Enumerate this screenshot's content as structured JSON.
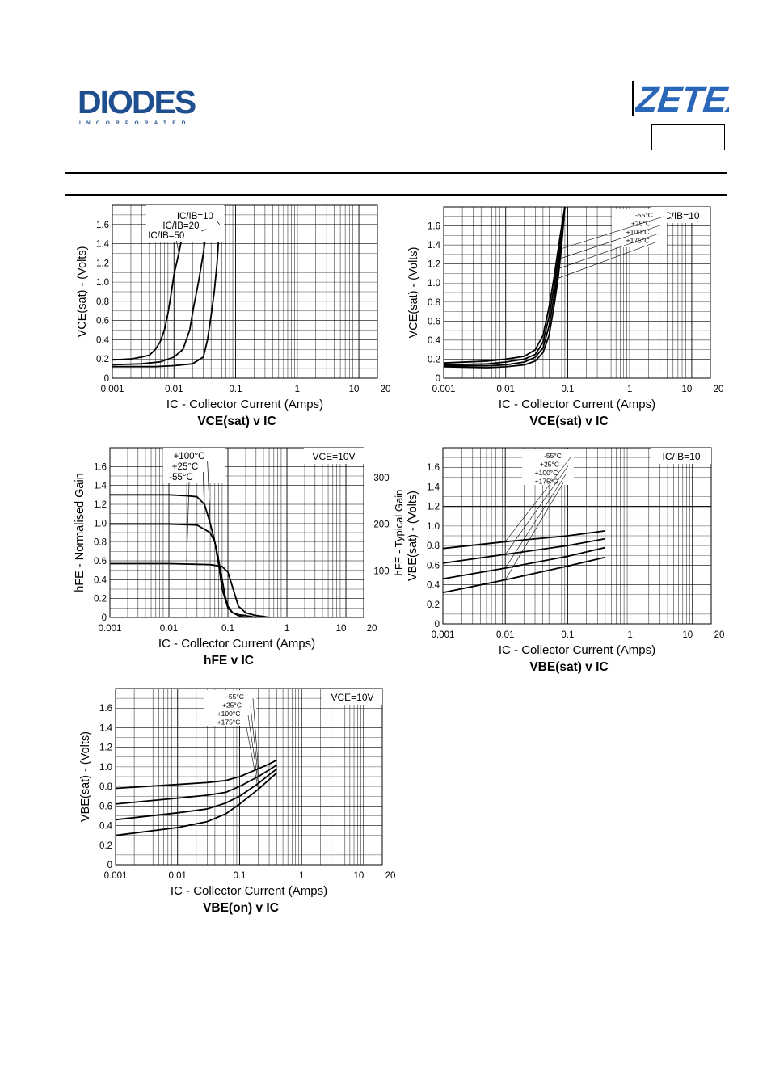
{
  "header": {
    "left_logo_text": "DIODES",
    "left_logo_subtext": "INCORPORATED",
    "right_logo_text": "ZETEX",
    "colors": {
      "diodes_logo": "#1f4f8f",
      "zetex_logo": "#2a67b8"
    }
  },
  "chart_data": [
    {
      "type": "line",
      "title": "VCE(sat) v IC",
      "xlabel": "IC - Collector Current (Amps)",
      "ylabel": "VCE(sat) - (Volts)",
      "x_scale": "log",
      "xlim": [
        0.001,
        20
      ],
      "ylim": [
        0,
        1.8
      ],
      "x_ticks": [
        "0.001",
        "0.01",
        "0.1",
        "1",
        "10",
        "20"
      ],
      "y_ticks": [
        "0",
        "0.2",
        "0.4",
        "0.6",
        "0.8",
        "1.0",
        "1.2",
        "1.4",
        "1.6"
      ],
      "legend_title": "",
      "series_labels": [
        "IC/IB=10",
        "IC/IB=20",
        "IC/IB=50"
      ],
      "series": [
        {
          "name": "IC/IB=50",
          "x": [
            0.001,
            0.002,
            0.003,
            0.004,
            0.005,
            0.006,
            0.007,
            0.008,
            0.009,
            0.01,
            0.012,
            0.015
          ],
          "y": [
            0.19,
            0.2,
            0.22,
            0.24,
            0.3,
            0.38,
            0.5,
            0.68,
            0.88,
            1.08,
            1.3,
            1.62
          ]
        },
        {
          "name": "IC/IB=20",
          "x": [
            0.001,
            0.003,
            0.006,
            0.01,
            0.014,
            0.018,
            0.021,
            0.025,
            0.03,
            0.035
          ],
          "y": [
            0.14,
            0.15,
            0.17,
            0.22,
            0.3,
            0.5,
            0.75,
            1.0,
            1.3,
            1.62
          ]
        },
        {
          "name": "IC/IB=10",
          "x": [
            0.001,
            0.005,
            0.01,
            0.02,
            0.03,
            0.035,
            0.04,
            0.045,
            0.05,
            0.055
          ],
          "y": [
            0.12,
            0.12,
            0.13,
            0.15,
            0.22,
            0.4,
            0.65,
            0.9,
            1.2,
            1.6
          ]
        }
      ]
    },
    {
      "type": "line",
      "title": "VCE(sat) v IC",
      "xlabel": "IC - Collector Current (Amps)",
      "ylabel": "VCE(sat) - (Volts)",
      "x_scale": "log",
      "xlim": [
        0.001,
        20
      ],
      "ylim": [
        0,
        1.8
      ],
      "x_ticks": [
        "0.001",
        "0.01",
        "0.1",
        "1",
        "10",
        "20"
      ],
      "y_ticks": [
        "0",
        "0.2",
        "0.4",
        "0.6",
        "0.8",
        "1.0",
        "1.2",
        "1.4",
        "1.6"
      ],
      "legend_title": "IC/IB=10",
      "series_labels": [
        "-55°C",
        "+25°C",
        "+100°C",
        "+175°C"
      ],
      "series": [
        {
          "name": "-55°C",
          "x": [
            0.001,
            0.005,
            0.01,
            0.02,
            0.03,
            0.04,
            0.05,
            0.06,
            0.07,
            0.08,
            0.09
          ],
          "y": [
            0.16,
            0.18,
            0.2,
            0.23,
            0.3,
            0.45,
            0.75,
            1.05,
            1.35,
            1.6,
            1.8
          ]
        },
        {
          "name": "+25°C",
          "x": [
            0.001,
            0.005,
            0.01,
            0.02,
            0.03,
            0.04,
            0.05,
            0.06,
            0.07,
            0.08,
            0.09
          ],
          "y": [
            0.14,
            0.15,
            0.17,
            0.2,
            0.25,
            0.38,
            0.65,
            0.95,
            1.25,
            1.55,
            1.8
          ]
        },
        {
          "name": "+100°C",
          "x": [
            0.001,
            0.005,
            0.01,
            0.02,
            0.03,
            0.04,
            0.05,
            0.06,
            0.07,
            0.08,
            0.09
          ],
          "y": [
            0.13,
            0.13,
            0.14,
            0.17,
            0.22,
            0.32,
            0.55,
            0.85,
            1.15,
            1.5,
            1.8
          ]
        },
        {
          "name": "+175°C",
          "x": [
            0.001,
            0.005,
            0.01,
            0.02,
            0.03,
            0.04,
            0.05,
            0.06,
            0.07,
            0.08,
            0.09
          ],
          "y": [
            0.12,
            0.11,
            0.12,
            0.14,
            0.18,
            0.27,
            0.45,
            0.75,
            1.05,
            1.4,
            1.8
          ]
        }
      ]
    },
    {
      "type": "line",
      "title": "hFE v IC",
      "xlabel": "IC - Collector Current (Amps)",
      "ylabel": "hFE - Normalised Gain",
      "y2label": "hFE - Typical Gain",
      "x_scale": "log",
      "xlim": [
        0.001,
        20
      ],
      "ylim": [
        0,
        1.8
      ],
      "y2_ticks": [
        "100",
        "200",
        "300"
      ],
      "x_ticks": [
        "0.001",
        "0.01",
        "0.1",
        "1",
        "10",
        "20"
      ],
      "y_ticks": [
        "0",
        "0.2",
        "0.4",
        "0.6",
        "0.8",
        "1.0",
        "1.2",
        "1.4",
        "1.6"
      ],
      "legend_title": "VCE=10V",
      "series_labels": [
        "+100°C",
        "+25°C",
        "-55°C"
      ],
      "series": [
        {
          "name": "+100°C",
          "x": [
            0.001,
            0.01,
            0.02,
            0.03,
            0.04,
            0.05,
            0.06,
            0.07,
            0.08,
            0.1,
            0.12,
            0.15,
            0.2
          ],
          "y": [
            1.3,
            1.3,
            1.29,
            1.28,
            1.2,
            1.0,
            0.8,
            0.55,
            0.3,
            0.1,
            0.05,
            0.02,
            0.0
          ]
        },
        {
          "name": "+25°C",
          "x": [
            0.001,
            0.01,
            0.03,
            0.05,
            0.06,
            0.07,
            0.08,
            0.09,
            0.1,
            0.12,
            0.15,
            0.2,
            0.3
          ],
          "y": [
            0.99,
            0.99,
            0.98,
            0.9,
            0.8,
            0.6,
            0.4,
            0.22,
            0.12,
            0.05,
            0.03,
            0.02,
            0.0
          ]
        },
        {
          "name": "-55°C",
          "x": [
            0.001,
            0.01,
            0.05,
            0.08,
            0.1,
            0.12,
            0.15,
            0.2,
            0.3,
            0.4,
            0.5
          ],
          "y": [
            0.57,
            0.57,
            0.56,
            0.54,
            0.48,
            0.32,
            0.12,
            0.05,
            0.02,
            0.01,
            0.0
          ]
        }
      ]
    },
    {
      "type": "line",
      "title": "VBE(sat) v IC",
      "xlabel": "IC - Collector Current (Amps)",
      "ylabel": "VBE(sat) - (Volts)",
      "x_scale": "log",
      "xlim": [
        0.001,
        20
      ],
      "ylim": [
        0,
        1.8
      ],
      "x_ticks": [
        "0.001",
        "0.01",
        "0.1",
        "1",
        "10",
        "20"
      ],
      "y_ticks": [
        "0",
        "0.2",
        "0.4",
        "0.6",
        "0.8",
        "1.0",
        "1.2",
        "1.4",
        "1.6"
      ],
      "legend_title": "IC/IB=10",
      "series_labels": [
        "-55°C",
        "+25°C",
        "+100°C",
        "+175°C"
      ],
      "series": [
        {
          "name": "-55°C",
          "x": [
            0.001,
            0.01,
            0.1,
            0.4
          ],
          "y": [
            0.77,
            0.84,
            0.9,
            0.95
          ]
        },
        {
          "name": "+25°C",
          "x": [
            0.001,
            0.01,
            0.1,
            0.4
          ],
          "y": [
            0.62,
            0.71,
            0.8,
            0.87
          ]
        },
        {
          "name": "+100°C",
          "x": [
            0.001,
            0.01,
            0.1,
            0.4
          ],
          "y": [
            0.46,
            0.57,
            0.69,
            0.78
          ]
        },
        {
          "name": "+175°C",
          "x": [
            0.001,
            0.01,
            0.1,
            0.4
          ],
          "y": [
            0.32,
            0.45,
            0.59,
            0.68
          ]
        }
      ]
    },
    {
      "type": "line",
      "title": "VBE(on) v IC",
      "xlabel": "IC - Collector Current (Amps)",
      "ylabel": "VBE(sat) - (Volts)",
      "x_scale": "log",
      "xlim": [
        0.001,
        20
      ],
      "ylim": [
        0,
        1.8
      ],
      "x_ticks": [
        "0.001",
        "0.01",
        "0.1",
        "1",
        "10",
        "20"
      ],
      "y_ticks": [
        "0",
        "0.2",
        "0.4",
        "0.6",
        "0.8",
        "1.0",
        "1.2",
        "1.4",
        "1.6"
      ],
      "legend_title": "VCE=10V",
      "series_labels": [
        "-55°C",
        "+25°C",
        "+100°C",
        "+175°C"
      ],
      "series": [
        {
          "name": "-55°C",
          "x": [
            0.001,
            0.01,
            0.03,
            0.06,
            0.1,
            0.2,
            0.3,
            0.4
          ],
          "y": [
            0.78,
            0.82,
            0.84,
            0.86,
            0.9,
            0.98,
            1.03,
            1.07
          ]
        },
        {
          "name": "+25°C",
          "x": [
            0.001,
            0.01,
            0.03,
            0.06,
            0.1,
            0.2,
            0.3,
            0.4
          ],
          "y": [
            0.62,
            0.68,
            0.71,
            0.74,
            0.8,
            0.9,
            0.97,
            1.02
          ]
        },
        {
          "name": "+100°C",
          "x": [
            0.001,
            0.01,
            0.03,
            0.06,
            0.1,
            0.2,
            0.3,
            0.4
          ],
          "y": [
            0.46,
            0.53,
            0.57,
            0.63,
            0.7,
            0.83,
            0.92,
            0.98
          ]
        },
        {
          "name": "+175°C",
          "x": [
            0.001,
            0.01,
            0.03,
            0.06,
            0.1,
            0.2,
            0.3,
            0.4
          ],
          "y": [
            0.3,
            0.38,
            0.44,
            0.52,
            0.62,
            0.77,
            0.87,
            0.94
          ]
        }
      ]
    }
  ]
}
